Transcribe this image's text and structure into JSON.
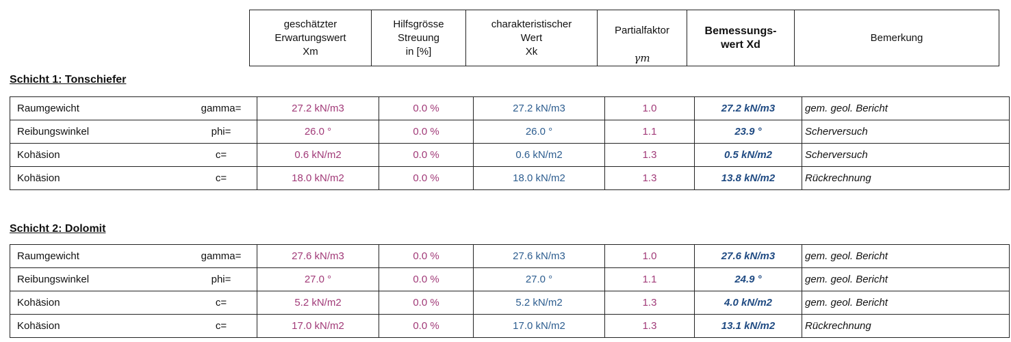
{
  "header": {
    "col_xm": "geschätzter\nErwartungswert\nXm",
    "col_streuung": "Hilfsgrösse\nStreuung\nin [%]",
    "col_xk": "charakteristischer\nWert\nXk",
    "col_partial_line1": "Partialfaktor",
    "col_partial_symbol": "γm",
    "col_xd": "Bemessungs-\nwert Xd",
    "col_bemerkung": "Bemerkung"
  },
  "sections": [
    {
      "title": "Schicht 1: Tonschiefer",
      "rows": [
        {
          "name": "Raumgewicht",
          "symbol": "gamma=",
          "xm": "27.2 kN/m3",
          "streuung": "0.0 %",
          "xk": "27.2 kN/m3",
          "factor": "1.0",
          "xd": "27.2 kN/m3",
          "remark": "gem. geol. Bericht"
        },
        {
          "name": "Reibungswinkel",
          "symbol": "phi=",
          "xm": "26.0 °",
          "streuung": "0.0 %",
          "xk": "26.0 °",
          "factor": "1.1",
          "xd": "23.9 °",
          "remark": "Scherversuch"
        },
        {
          "name": "Kohäsion",
          "symbol": "c=",
          "xm": "0.6 kN/m2",
          "streuung": "0.0 %",
          "xk": "0.6 kN/m2",
          "factor": "1.3",
          "xd": "0.5 kN/m2",
          "remark": "Scherversuch"
        },
        {
          "name": "Kohäsion",
          "symbol": "c=",
          "xm": "18.0 kN/m2",
          "streuung": "0.0 %",
          "xk": "18.0 kN/m2",
          "factor": "1.3",
          "xd": "13.8 kN/m2",
          "remark": "Rückrechnung"
        }
      ]
    },
    {
      "title": "Schicht 2: Dolomit",
      "rows": [
        {
          "name": "Raumgewicht",
          "symbol": "gamma=",
          "xm": "27.6 kN/m3",
          "streuung": "0.0 %",
          "xk": "27.6 kN/m3",
          "factor": "1.0",
          "xd": "27.6 kN/m3",
          "remark": "gem. geol. Bericht"
        },
        {
          "name": "Reibungswinkel",
          "symbol": "phi=",
          "xm": "27.0 °",
          "streuung": "0.0 %",
          "xk": "27.0 °",
          "factor": "1.1",
          "xd": "24.9 °",
          "remark": "gem. geol. Bericht"
        },
        {
          "name": "Kohäsion",
          "symbol": "c=",
          "xm": "5.2 kN/m2",
          "streuung": "0.0 %",
          "xk": "5.2 kN/m2",
          "factor": "1.3",
          "xd": "4.0 kN/m2",
          "remark": "gem. geol. Bericht"
        },
        {
          "name": "Kohäsion",
          "symbol": "c=",
          "xm": "17.0 kN/m2",
          "streuung": "0.0 %",
          "xk": "17.0 kN/m2",
          "factor": "1.3",
          "xd": "13.1 kN/m2",
          "remark": "Rückrechnung"
        }
      ]
    }
  ]
}
